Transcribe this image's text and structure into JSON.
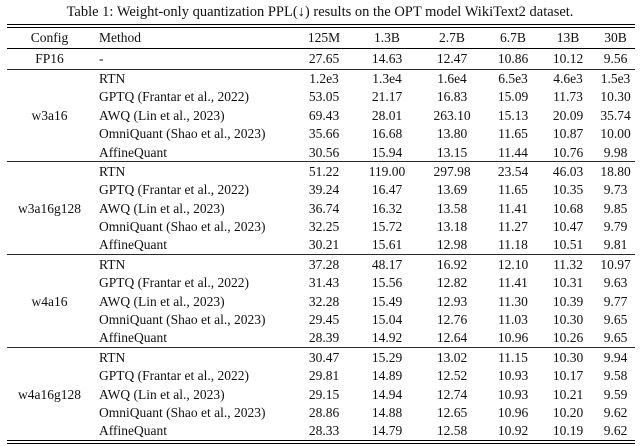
{
  "title": "Table 1: Weight-only quantization PPL(↓) results on the OPT model WikiText2 dataset.",
  "table": {
    "columns": [
      "Config",
      "Method",
      "125M",
      "1.3B",
      "2.7B",
      "6.7B",
      "13B",
      "30B"
    ],
    "groups": [
      {
        "config": "FP16",
        "rows": [
          {
            "method": "-",
            "values": [
              "27.65",
              "14.63",
              "12.47",
              "10.86",
              "10.12",
              "9.56"
            ]
          }
        ]
      },
      {
        "config": "w3a16",
        "rows": [
          {
            "method": "RTN",
            "values": [
              "1.2e3",
              "1.3e4",
              "1.6e4",
              "6.5e3",
              "4.6e3",
              "1.5e3"
            ]
          },
          {
            "method": "GPTQ (Frantar et al., 2022)",
            "values": [
              "53.05",
              "21.17",
              "16.83",
              "15.09",
              "11.73",
              "10.30"
            ]
          },
          {
            "method": "AWQ (Lin et al., 2023)",
            "values": [
              "69.43",
              "28.01",
              "263.10",
              "15.13",
              "20.09",
              "35.74"
            ]
          },
          {
            "method": "OmniQuant (Shao et al., 2023)",
            "values": [
              "35.66",
              "16.68",
              "13.80",
              "11.65",
              "10.87",
              "10.00"
            ]
          },
          {
            "method": "AffineQuant",
            "values": [
              "30.56",
              "15.94",
              "13.15",
              "11.44",
              "10.76",
              "9.98"
            ]
          }
        ]
      },
      {
        "config": "w3a16g128",
        "rows": [
          {
            "method": "RTN",
            "values": [
              "51.22",
              "119.00",
              "297.98",
              "23.54",
              "46.03",
              "18.80"
            ]
          },
          {
            "method": "GPTQ (Frantar et al., 2022)",
            "values": [
              "39.24",
              "16.47",
              "13.69",
              "11.65",
              "10.35",
              "9.73"
            ]
          },
          {
            "method": "AWQ (Lin et al., 2023)",
            "values": [
              "36.74",
              "16.32",
              "13.58",
              "11.41",
              "10.68",
              "9.85"
            ]
          },
          {
            "method": "OmniQuant (Shao et al., 2023)",
            "values": [
              "32.25",
              "15.72",
              "13.18",
              "11.27",
              "10.47",
              "9.79"
            ]
          },
          {
            "method": "AffineQuant",
            "values": [
              "30.21",
              "15.61",
              "12.98",
              "11.18",
              "10.51",
              "9.81"
            ]
          }
        ]
      },
      {
        "config": "w4a16",
        "rows": [
          {
            "method": "RTN",
            "values": [
              "37.28",
              "48.17",
              "16.92",
              "12.10",
              "11.32",
              "10.97"
            ]
          },
          {
            "method": "GPTQ (Frantar et al., 2022)",
            "values": [
              "31.43",
              "15.56",
              "12.82",
              "11.41",
              "10.31",
              "9.63"
            ]
          },
          {
            "method": "AWQ (Lin et al., 2023)",
            "values": [
              "32.28",
              "15.49",
              "12.93",
              "11.30",
              "10.39",
              "9.77"
            ]
          },
          {
            "method": "OmniQuant (Shao et al., 2023)",
            "values": [
              "29.45",
              "15.04",
              "12.76",
              "11.03",
              "10.30",
              "9.65"
            ]
          },
          {
            "method": "AffineQuant",
            "values": [
              "28.39",
              "14.92",
              "12.64",
              "10.96",
              "10.26",
              "9.65"
            ]
          }
        ]
      },
      {
        "config": "w4a16g128",
        "rows": [
          {
            "method": "RTN",
            "values": [
              "30.47",
              "15.29",
              "13.02",
              "11.15",
              "10.30",
              "9.94"
            ]
          },
          {
            "method": "GPTQ (Frantar et al., 2022)",
            "values": [
              "29.81",
              "14.89",
              "12.52",
              "10.93",
              "10.17",
              "9.58"
            ]
          },
          {
            "method": "AWQ (Lin et al., 2023)",
            "values": [
              "29.15",
              "14.94",
              "12.74",
              "10.93",
              "10.21",
              "9.59"
            ]
          },
          {
            "method": "OmniQuant (Shao et al., 2023)",
            "values": [
              "28.86",
              "14.88",
              "12.65",
              "10.96",
              "10.20",
              "9.62"
            ]
          },
          {
            "method": "AffineQuant",
            "values": [
              "28.33",
              "14.79",
              "12.58",
              "10.92",
              "10.19",
              "9.62"
            ]
          }
        ]
      }
    ]
  }
}
